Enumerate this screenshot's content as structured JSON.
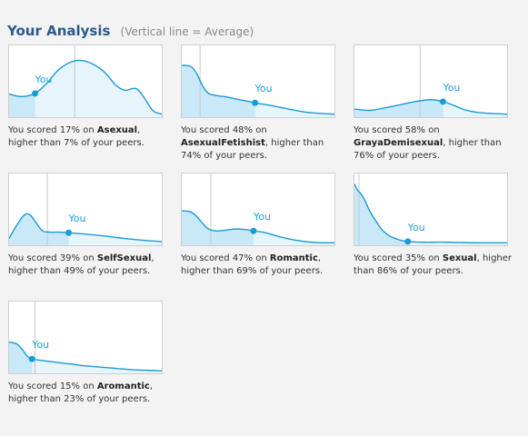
{
  "header": {
    "title": "Your Analysis",
    "subtitle": "(Vertical line = Average)"
  },
  "text": {
    "you": "You",
    "scored_prefix": "You scored ",
    "on": " on ",
    "higher_prefix": "higher than ",
    "peers_suffix": " of your peers."
  },
  "colors": {
    "line": "#1a9bd5",
    "fill": "#c9e8f8",
    "fill_light": "#e6f4fc",
    "avg_line": "#c8c8c8",
    "title": "#2b5a8f"
  },
  "chart_data": [
    {
      "type": "area",
      "category": "Asexual",
      "score": "17%",
      "higher_than": "7%",
      "score_value": 17,
      "average": 43,
      "x": [
        0,
        8,
        17,
        25,
        33,
        43,
        52,
        62,
        70,
        76,
        83,
        88,
        94,
        100
      ],
      "y": [
        0.34,
        0.3,
        0.35,
        0.52,
        0.74,
        0.87,
        0.85,
        0.7,
        0.48,
        0.4,
        0.43,
        0.3,
        0.08,
        0.02
      ]
    },
    {
      "type": "area",
      "category": "AsexualFetishist",
      "score": "48%",
      "higher_than": "74%",
      "score_value": 48,
      "average": 12,
      "x": [
        0,
        6,
        10,
        13,
        17,
        22,
        30,
        40,
        48,
        58,
        70,
        82,
        92,
        100
      ],
      "y": [
        0.8,
        0.78,
        0.66,
        0.5,
        0.36,
        0.32,
        0.29,
        0.24,
        0.2,
        0.16,
        0.1,
        0.05,
        0.03,
        0.02
      ]
    },
    {
      "type": "area",
      "category": "GrayaDemisexual",
      "score": "58%",
      "higher_than": "76%",
      "score_value": 58,
      "average": 43,
      "x": [
        0,
        10,
        20,
        30,
        40,
        50,
        58,
        65,
        72,
        80,
        90,
        100
      ],
      "y": [
        0.1,
        0.08,
        0.12,
        0.17,
        0.22,
        0.25,
        0.22,
        0.16,
        0.09,
        0.05,
        0.03,
        0.02
      ]
    },
    {
      "type": "area",
      "category": "SelfSexual",
      "score": "39%",
      "higher_than": "49%",
      "score_value": 39,
      "average": 25,
      "x": [
        0,
        4,
        8,
        11,
        14,
        18,
        22,
        27,
        33,
        39,
        50,
        62,
        75,
        88,
        100
      ],
      "y": [
        0.08,
        0.25,
        0.4,
        0.47,
        0.45,
        0.32,
        0.2,
        0.18,
        0.18,
        0.17,
        0.15,
        0.12,
        0.08,
        0.05,
        0.03
      ]
    },
    {
      "type": "area",
      "category": "Romantic",
      "score": "47%",
      "higher_than": "69%",
      "score_value": 47,
      "average": 19,
      "x": [
        0,
        5,
        9,
        13,
        17,
        22,
        28,
        35,
        42,
        47,
        55,
        65,
        75,
        85,
        92,
        100
      ],
      "y": [
        0.52,
        0.51,
        0.45,
        0.34,
        0.24,
        0.2,
        0.21,
        0.23,
        0.22,
        0.2,
        0.17,
        0.1,
        0.05,
        0.02,
        0.01,
        0.01
      ]
    },
    {
      "type": "area",
      "category": "Sexual",
      "score": "35%",
      "higher_than": "86%",
      "score_value": 35,
      "average": 3,
      "x": [
        0,
        2,
        4,
        7,
        10,
        14,
        18,
        23,
        29,
        35,
        45,
        60,
        80,
        100
      ],
      "y": [
        0.95,
        0.85,
        0.8,
        0.68,
        0.52,
        0.36,
        0.22,
        0.12,
        0.06,
        0.03,
        0.02,
        0.02,
        0.01,
        0.01
      ]
    },
    {
      "type": "area",
      "category": "Aromantic",
      "score": "15%",
      "higher_than": "23%",
      "score_value": 15,
      "average": 17,
      "x": [
        0,
        5,
        9,
        12,
        15,
        20,
        30,
        40,
        50,
        60,
        70,
        80,
        90,
        100
      ],
      "y": [
        0.47,
        0.44,
        0.34,
        0.24,
        0.2,
        0.18,
        0.15,
        0.12,
        0.09,
        0.07,
        0.05,
        0.03,
        0.02,
        0.01
      ]
    }
  ]
}
